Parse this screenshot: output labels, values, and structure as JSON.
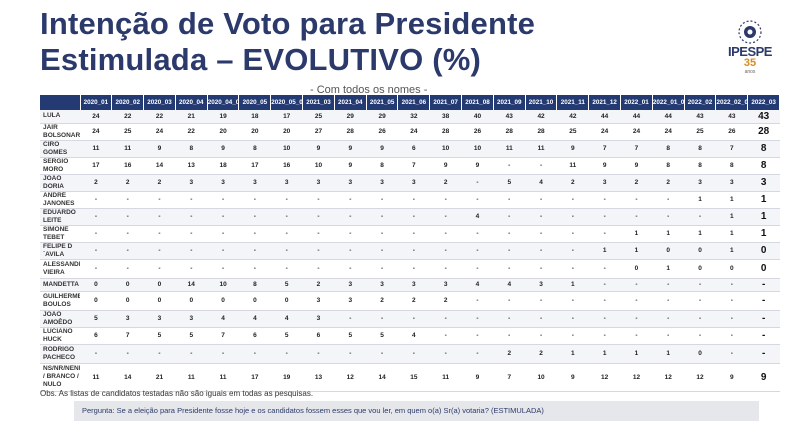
{
  "title_line1": "Intenção de Voto para Presidente",
  "title_line2": "Estimulada – EVOLUTIVO (%)",
  "subtitle": "- Com todos os nomes -",
  "logo": {
    "name": "IPESPE",
    "years": "35",
    "anos": "anos"
  },
  "colors": {
    "header_bg": "#243a73",
    "title": "#2b3a6b",
    "accent": "#d98b1f"
  },
  "table": {
    "columns": [
      "2020_01",
      "2020_02",
      "2020_03",
      "2020_04",
      "2020_04_03",
      "2020_05",
      "2020_05_01",
      "2021_03",
      "2021_04",
      "2021_05",
      "2021_06",
      "2021_07",
      "2021_08",
      "2021_09",
      "2021_10",
      "2021_11",
      "2021_12",
      "2022_01",
      "2022_01_02",
      "2022_02",
      "2022_02_02",
      "2022_03"
    ],
    "rows": [
      {
        "name": "LULA",
        "values": [
          "24",
          "22",
          "22",
          "21",
          "19",
          "18",
          "17",
          "25",
          "29",
          "29",
          "32",
          "38",
          "40",
          "43",
          "42",
          "42",
          "44",
          "44",
          "44",
          "43",
          "43",
          "43"
        ]
      },
      {
        "name": "JAIR BOLSONARO",
        "values": [
          "24",
          "25",
          "24",
          "22",
          "20",
          "20",
          "20",
          "27",
          "28",
          "26",
          "24",
          "28",
          "26",
          "28",
          "28",
          "25",
          "24",
          "24",
          "24",
          "25",
          "26",
          "28"
        ]
      },
      {
        "name": "CIRO GOMES",
        "values": [
          "11",
          "11",
          "9",
          "8",
          "9",
          "8",
          "10",
          "9",
          "9",
          "9",
          "6",
          "10",
          "10",
          "11",
          "11",
          "9",
          "7",
          "7",
          "8",
          "8",
          "7",
          "8"
        ]
      },
      {
        "name": "SERGIO MORO",
        "values": [
          "17",
          "16",
          "14",
          "13",
          "18",
          "17",
          "16",
          "10",
          "9",
          "8",
          "7",
          "9",
          "9",
          "-",
          "-",
          "11",
          "9",
          "9",
          "8",
          "8",
          "8",
          "8"
        ]
      },
      {
        "name": "JOÃO DORIA",
        "values": [
          "2",
          "2",
          "2",
          "3",
          "3",
          "3",
          "3",
          "3",
          "3",
          "3",
          "3",
          "2",
          "-",
          "5",
          "4",
          "2",
          "3",
          "2",
          "2",
          "3",
          "3",
          "3"
        ]
      },
      {
        "name": "ANDRÉ JANONES",
        "values": [
          "-",
          "-",
          "-",
          "-",
          "-",
          "-",
          "-",
          "-",
          "-",
          "-",
          "-",
          "-",
          "-",
          "-",
          "-",
          "-",
          "-",
          "-",
          "-",
          "1",
          "1",
          "1"
        ]
      },
      {
        "name": "EDUARDO LEITE",
        "values": [
          "-",
          "-",
          "-",
          "-",
          "-",
          "-",
          "-",
          "-",
          "-",
          "-",
          "-",
          "-",
          "4",
          "-",
          "-",
          "-",
          "-",
          "-",
          "-",
          "-",
          "1",
          "1"
        ]
      },
      {
        "name": "SIMONE TEBET",
        "values": [
          "-",
          "-",
          "-",
          "-",
          "-",
          "-",
          "-",
          "-",
          "-",
          "-",
          "-",
          "-",
          "-",
          "-",
          "-",
          "-",
          "-",
          "1",
          "1",
          "1",
          "1",
          "1"
        ]
      },
      {
        "name": "FELIPE D´AVILA",
        "values": [
          "-",
          "-",
          "-",
          "-",
          "-",
          "-",
          "-",
          "-",
          "-",
          "-",
          "-",
          "-",
          "-",
          "-",
          "-",
          "-",
          "1",
          "1",
          "0",
          "0",
          "1",
          "0"
        ]
      },
      {
        "name": "ALESSANDRO VIEIRA",
        "values": [
          "-",
          "-",
          "-",
          "-",
          "-",
          "-",
          "-",
          "-",
          "-",
          "-",
          "-",
          "-",
          "-",
          "-",
          "-",
          "-",
          "-",
          "0",
          "1",
          "0",
          "0",
          "0"
        ]
      },
      {
        "name": "MANDETTA",
        "values": [
          "0",
          "0",
          "0",
          "14",
          "10",
          "8",
          "5",
          "2",
          "3",
          "3",
          "3",
          "3",
          "4",
          "4",
          "3",
          "1",
          "-",
          "-",
          "-",
          "-",
          "-",
          "-"
        ]
      },
      {
        "name": "GUILHERME BOULOS",
        "values": [
          "0",
          "0",
          "0",
          "0",
          "0",
          "0",
          "0",
          "3",
          "3",
          "2",
          "2",
          "2",
          "-",
          "-",
          "-",
          "-",
          "-",
          "-",
          "-",
          "-",
          "-",
          "-"
        ]
      },
      {
        "name": "JOÃO AMOÊDO",
        "values": [
          "5",
          "3",
          "3",
          "3",
          "4",
          "4",
          "4",
          "3",
          "-",
          "-",
          "-",
          "-",
          "-",
          "-",
          "-",
          "-",
          "-",
          "-",
          "-",
          "-",
          "-",
          "-"
        ]
      },
      {
        "name": "LUCIANO HUCK",
        "values": [
          "6",
          "7",
          "5",
          "5",
          "7",
          "6",
          "5",
          "6",
          "5",
          "5",
          "4",
          "-",
          "-",
          "-",
          "-",
          "-",
          "-",
          "-",
          "-",
          "-",
          "-",
          "-"
        ]
      },
      {
        "name": "RODRIGO PACHECO",
        "values": [
          "-",
          "-",
          "-",
          "-",
          "-",
          "-",
          "-",
          "-",
          "-",
          "-",
          "-",
          "-",
          "-",
          "2",
          "2",
          "1",
          "1",
          "1",
          "1",
          "0",
          "-",
          "-"
        ]
      },
      {
        "name": "NS/NR/NENHUM / BRANCO / NULO",
        "values": [
          "11",
          "14",
          "21",
          "11",
          "11",
          "17",
          "19",
          "13",
          "12",
          "14",
          "15",
          "11",
          "9",
          "7",
          "10",
          "9",
          "12",
          "12",
          "12",
          "12",
          "9",
          "9"
        ]
      }
    ]
  },
  "obs": "Obs. As listas de candidatos testadas não são iguais em todas as pesquisas.",
  "question": "Pergunta:  Se a eleição para Presidente fosse hoje e os candidatos fossem esses que vou ler, em quem o(a) Sr(a) votaria? (ESTIMULADA)"
}
